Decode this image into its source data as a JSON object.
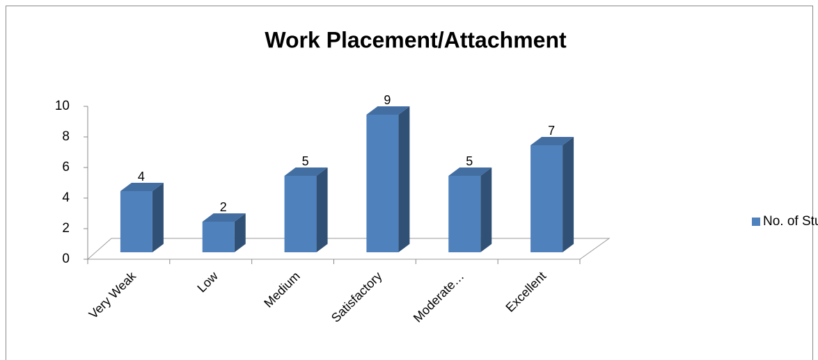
{
  "chart_data": {
    "type": "bar3d",
    "title": "Work Placement/Attachment",
    "categories": [
      "Very Weak",
      "Low",
      "Medium",
      "Satisfactory",
      "Moderate…",
      "Excellent"
    ],
    "series": [
      {
        "name": "No. of Students",
        "color": "#4f81bd",
        "values": [
          4,
          2,
          5,
          9,
          5,
          7
        ]
      }
    ],
    "ylim": [
      0,
      10
    ],
    "yticks": [
      0,
      2,
      4,
      6,
      8,
      10
    ],
    "legend": "right"
  }
}
